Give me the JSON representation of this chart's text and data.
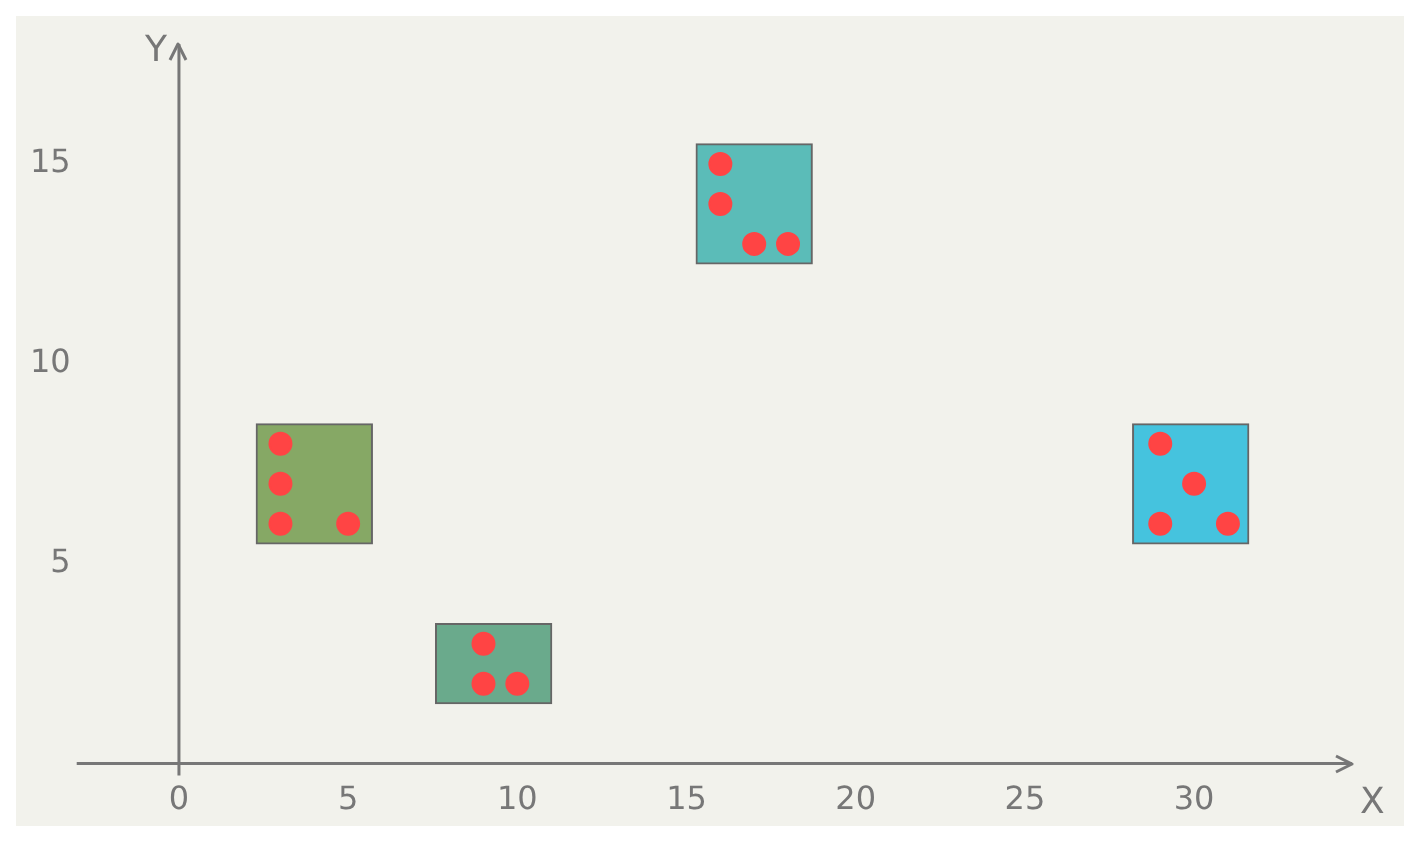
{
  "chart_data": {
    "type": "scatter",
    "xlabel": "X",
    "ylabel": "Y",
    "xlim": [
      0,
      32
    ],
    "xticks": [
      0,
      5,
      10,
      15,
      20,
      25,
      30
    ],
    "ylim": [
      0,
      18
    ],
    "yticks": [
      5,
      10,
      15
    ],
    "grid": false,
    "legend": false,
    "marker": "circle",
    "series": [
      {
        "type": "bar",
        "x": [
          4,
          9.3,
          17,
          29.9
        ],
        "base": [
          5.5,
          1.5,
          12.5,
          5.5
        ],
        "values": [
          3,
          2,
          3,
          3
        ],
        "colors": [
          "#86a865",
          "#6aaa8c",
          "#5bbcb8",
          "#45c3de"
        ]
      },
      {
        "color": "#ff4444",
        "x": [
          3,
          3,
          3,
          5,
          9,
          9,
          10,
          16,
          16,
          17,
          18,
          29,
          30,
          29,
          31
        ],
        "values": [
          8,
          7,
          6,
          6,
          3,
          2,
          2,
          15,
          14,
          13,
          13,
          8,
          7,
          6,
          6
        ]
      }
    ]
  }
}
